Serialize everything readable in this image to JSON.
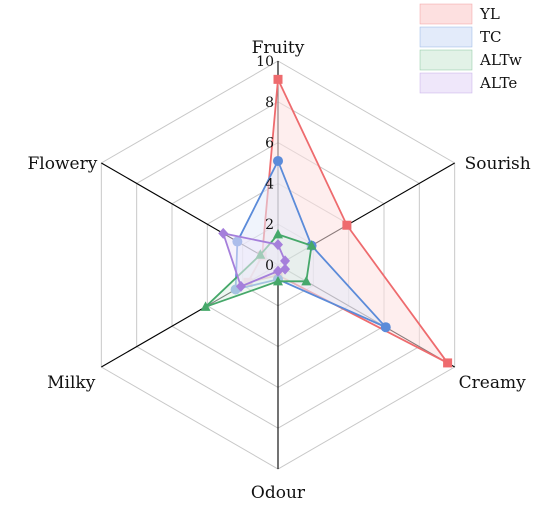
{
  "chart_data": {
    "type": "radar",
    "axes": [
      "Fruity",
      "Sourish",
      "Creamy",
      "Odour",
      "Milky",
      "Flowery"
    ],
    "rlim": [
      0,
      10
    ],
    "ticks": [
      "0",
      "2",
      "4",
      "6",
      "8",
      "10"
    ],
    "grid": true,
    "legend": "top-right",
    "series": [
      {
        "name": "YL",
        "values": [
          9.1,
          3.9,
          9.6,
          0.5,
          1.7,
          0.9
        ],
        "color": "#ee6b6e",
        "fill": "#fde0e0",
        "marker": "square"
      },
      {
        "name": "TC",
        "values": [
          5.1,
          1.9,
          6.1,
          0.7,
          2.4,
          2.3
        ],
        "color": "#5b8bd9",
        "fill": "#e3ebfa",
        "marker": "circle"
      },
      {
        "name": "ALTw",
        "values": [
          1.5,
          1.9,
          1.6,
          0.8,
          4.1,
          1.0
        ],
        "color": "#46a86a",
        "fill": "#e2f2e7",
        "marker": "triangle"
      },
      {
        "name": "ALTe",
        "values": [
          1.0,
          0.4,
          0.4,
          0.3,
          2.1,
          3.1
        ],
        "color": "#a57fdb",
        "fill": "#efe7fa",
        "marker": "diamond"
      }
    ]
  }
}
